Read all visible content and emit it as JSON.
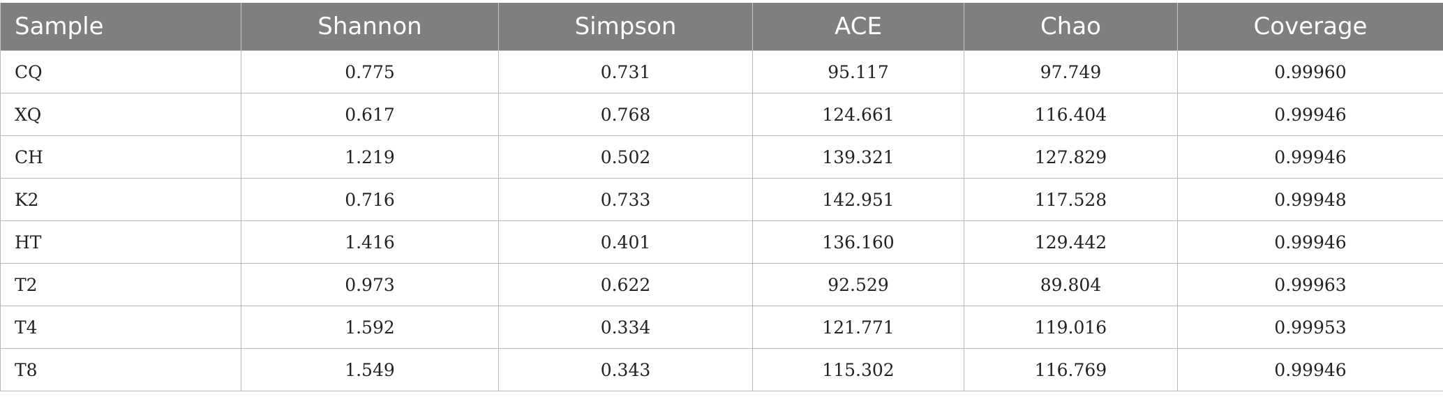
{
  "table": {
    "headers": [
      "Sample",
      "Shannon",
      "Simpson",
      "ACE",
      "Chao",
      "Coverage"
    ],
    "rows": [
      [
        "CQ",
        "0.775",
        "0.731",
        "95.117",
        "97.749",
        "0.99960"
      ],
      [
        "XQ",
        "0.617",
        "0.768",
        "124.661",
        "116.404",
        "0.99946"
      ],
      [
        "CH",
        "1.219",
        "0.502",
        "139.321",
        "127.829",
        "0.99946"
      ],
      [
        "K2",
        "0.716",
        "0.733",
        "142.951",
        "117.528",
        "0.99948"
      ],
      [
        "HT",
        "1.416",
        "0.401",
        "136.160",
        "129.442",
        "0.99946"
      ],
      [
        "T2",
        "0.973",
        "0.622",
        "92.529",
        "89.804",
        "0.99963"
      ],
      [
        "T4",
        "1.592",
        "0.334",
        "121.771",
        "119.016",
        "0.99953"
      ],
      [
        "T8",
        "1.549",
        "0.343",
        "115.302",
        "116.769",
        "0.99946"
      ]
    ]
  },
  "colors": {
    "header_bg": "#7f7f7f",
    "header_text": "#ffffff",
    "grid": "#b8b8b8"
  }
}
